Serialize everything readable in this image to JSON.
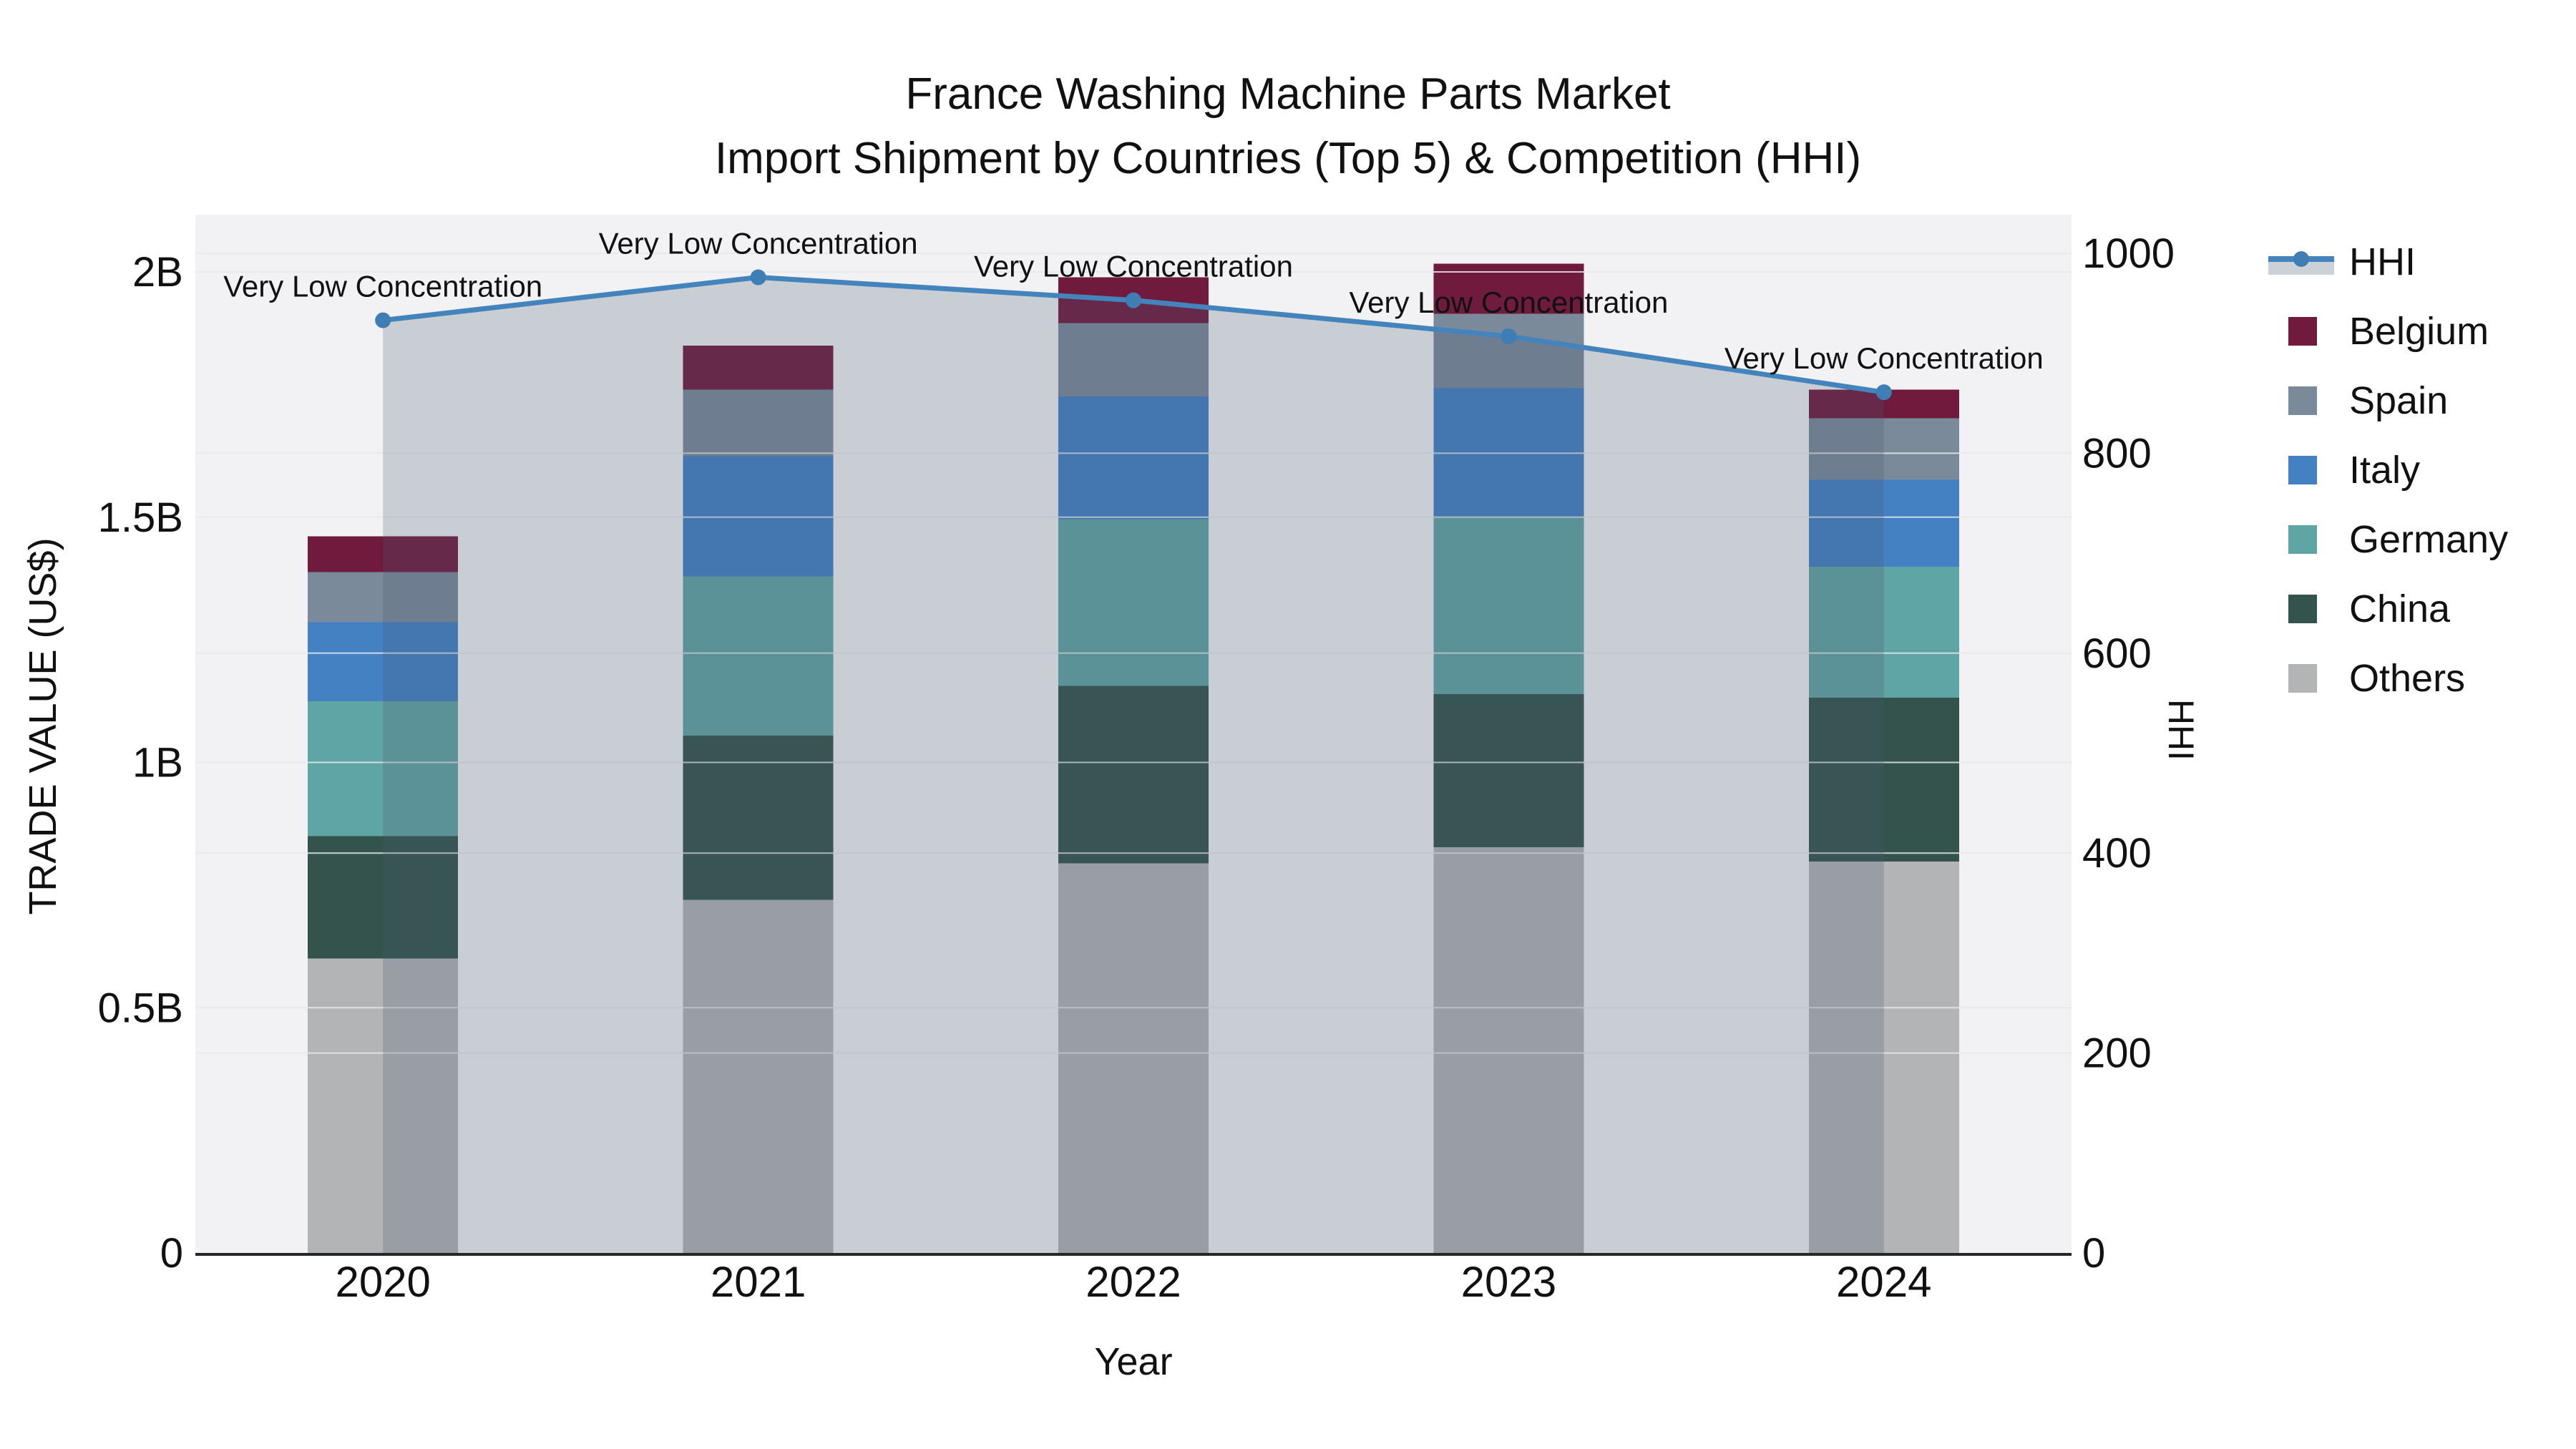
{
  "title": {
    "line1": "France Washing Machine Parts Market",
    "line2": "Import Shipment by Countries (Top 5) & Competition (HHI)"
  },
  "axes": {
    "y_left": {
      "title": "TRADE VALUE (US$)",
      "tick_labels": [
        "0",
        "0.5B",
        "1B",
        "1.5B",
        "2B"
      ],
      "tick_values_musd": [
        0,
        500,
        1000,
        1500,
        2000
      ],
      "range_musd": [
        0,
        2000
      ]
    },
    "y_right": {
      "title": "HHI",
      "tick_labels": [
        "0",
        "200",
        "400",
        "600",
        "800",
        "1000"
      ],
      "tick_values": [
        0,
        200,
        400,
        600,
        800,
        1000
      ],
      "range": [
        0,
        1000
      ]
    },
    "x": {
      "title": "Year",
      "tick_labels": [
        "2020",
        "2021",
        "2022",
        "2023",
        "2024"
      ]
    }
  },
  "legend": {
    "items": [
      {
        "id": "hhi",
        "label": "HHI",
        "kind": "line"
      },
      {
        "id": "belgium",
        "label": "Belgium",
        "kind": "swatch",
        "color": "#701b3d"
      },
      {
        "id": "spain",
        "label": "Spain",
        "kind": "swatch",
        "color": "#7b8a9a"
      },
      {
        "id": "italy",
        "label": "Italy",
        "kind": "swatch",
        "color": "#4381c3"
      },
      {
        "id": "germany",
        "label": "Germany",
        "kind": "swatch",
        "color": "#60a5a5"
      },
      {
        "id": "china",
        "label": "China",
        "kind": "swatch",
        "color": "#34534d"
      },
      {
        "id": "others",
        "label": "Others",
        "kind": "swatch",
        "color": "#b2b4b5"
      }
    ]
  },
  "annotations": [
    "Very Low Concentration",
    "Very Low Concentration",
    "Very Low Concentration",
    "Very Low Concentration",
    "Very Low Concentration"
  ],
  "colors": {
    "hhi_line": "#4484bc",
    "hhi_marker": "#3f7db5",
    "hhi_area_fill": "rgba(72,88,114,0.24)",
    "plot_bg": "#f2f2f4",
    "gridline": "#e7e8ea",
    "axis_line": "#262626",
    "text": "#111111"
  },
  "chart_data": {
    "type": "bar",
    "subtype": "stacked bars (left axis, trade value US$) + line with area fill (right axis, HHI)",
    "categories": [
      "2020",
      "2021",
      "2022",
      "2023",
      "2024"
    ],
    "stack_order_bottom_to_top": [
      "others",
      "china",
      "germany",
      "italy",
      "spain",
      "belgium"
    ],
    "series": [
      {
        "id": "belgium",
        "name": "Belgium",
        "type": "bar",
        "axis": "y_left",
        "values_musd": [
          73,
          90,
          93,
          102,
          58
        ],
        "color": "#701b3d"
      },
      {
        "id": "spain",
        "name": "Spain",
        "type": "bar",
        "axis": "y_left",
        "values_musd": [
          102,
          136,
          150,
          152,
          126
        ],
        "color": "#7b8a9a"
      },
      {
        "id": "italy",
        "name": "Italy",
        "type": "bar",
        "axis": "y_left",
        "values_musd": [
          161,
          245,
          250,
          264,
          177
        ],
        "color": "#4381c3"
      },
      {
        "id": "germany",
        "name": "Germany",
        "type": "bar",
        "axis": "y_left",
        "values_musd": [
          275,
          324,
          340,
          360,
          267
        ],
        "color": "#60a5a5"
      },
      {
        "id": "china",
        "name": "China",
        "type": "bar",
        "axis": "y_left",
        "values_musd": [
          250,
          335,
          362,
          312,
          334
        ],
        "color": "#34534d"
      },
      {
        "id": "others",
        "name": "Others",
        "type": "bar",
        "axis": "y_left",
        "values_musd": [
          600,
          720,
          794,
          827,
          798
        ],
        "color": "#b2b4b5"
      },
      {
        "id": "hhi",
        "name": "HHI",
        "type": "line+area",
        "axis": "y_right",
        "values": [
          933,
          976,
          953,
          917,
          861
        ]
      }
    ],
    "totals_musd": [
      1461,
      1850,
      1989,
      2017,
      1760
    ],
    "title": "France Washing Machine Parts Market — Import Shipment by Countries (Top 5) & Competition (HHI)",
    "xlabel": "Year",
    "ylabel_left": "TRADE VALUE (US$)",
    "ylabel_right": "HHI",
    "ylim_left_musd": [
      0,
      2000
    ],
    "ylim_right": [
      0,
      1000
    ],
    "grid": true,
    "legend_position": "right"
  }
}
